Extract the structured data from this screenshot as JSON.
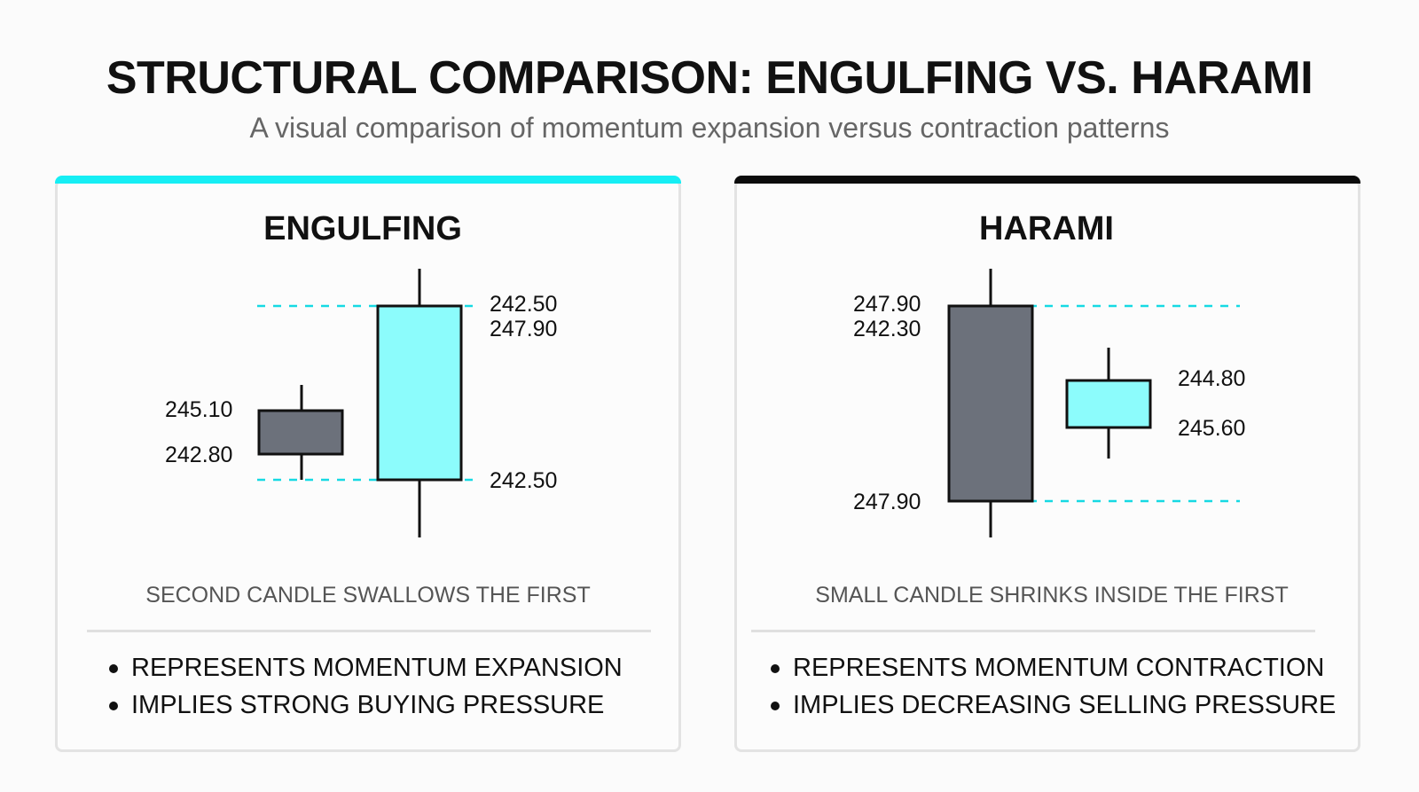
{
  "title": "STRUCTURAL COMPARISON: ENGULFING VS. HARAMI",
  "subtitle": "A visual comparison of momentum expansion versus contraction patterns",
  "colors": {
    "bullish": "#8cfcfc",
    "bearish": "#6c717b",
    "engulfing_accent": "#16eef4",
    "harami_accent": "#0c0c0c",
    "guide": "#16d9e3"
  },
  "panels": {
    "engulfing": {
      "heading": "ENGULFING",
      "caption": "SECOND CANDLE SWALLOWS THE FIRST",
      "bullets": [
        "REPRESENTS MOMENTUM EXPANSION",
        "IMPLIES STRONG BUYING PRESSURE"
      ],
      "labels": {
        "small_top": "245.10",
        "small_bottom": "242.80",
        "big_top_1": "242.50",
        "big_top_2": "247.90",
        "big_bottom": "242.50"
      }
    },
    "harami": {
      "heading": "HARAMI",
      "caption": "SMALL CANDLE SHRINKS INSIDE THE FIRST",
      "bullets": [
        "REPRESENTS MOMENTUM CONTRACTION",
        "IMPLIES DECREASING SELLING PRESSURE"
      ],
      "labels": {
        "big_top_1": "247.90",
        "big_top_2": "242.30",
        "big_bottom": "247.90",
        "small_top": "244.80",
        "small_bottom": "245.60"
      }
    }
  }
}
